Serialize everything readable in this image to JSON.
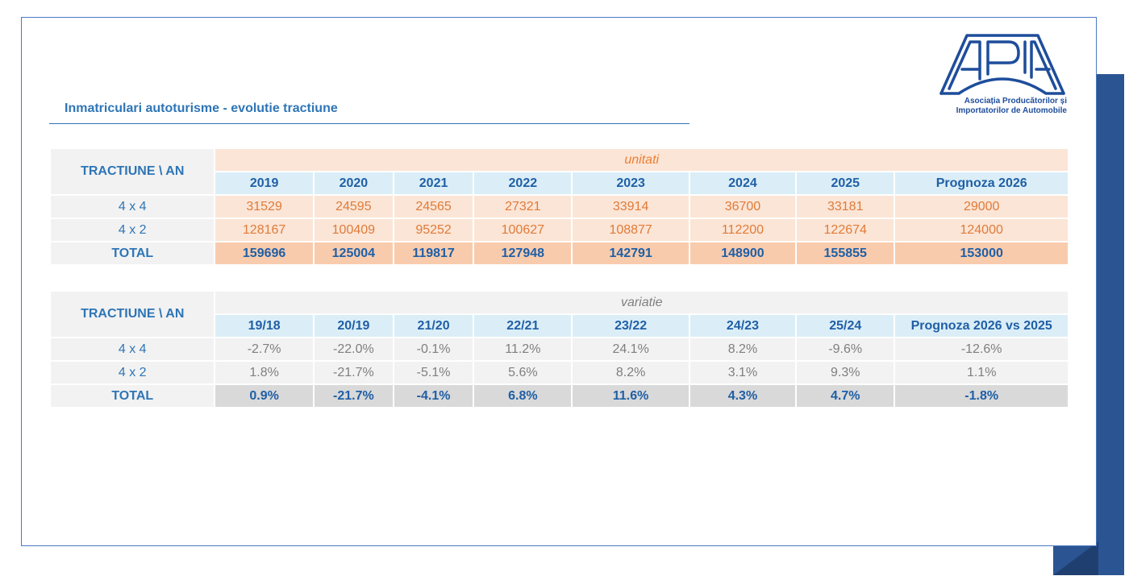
{
  "title": "Inmatriculari autoturisme - evolutie tractiune",
  "logo": {
    "letters": "APIA",
    "line1": "Asociația Producătorilor și",
    "line2": "Importatorilor de Automobile",
    "color": "#1e4d9b"
  },
  "units_table": {
    "corner": "TRACTIUNE  \\ AN",
    "group_label": "unitati",
    "columns": [
      "2019",
      "2020",
      "2021",
      "2022",
      "2023",
      "2024",
      "2025",
      "Prognoza 2026"
    ],
    "rows": [
      {
        "label": "4 x 4",
        "values": [
          "31529",
          "24595",
          "24565",
          "27321",
          "33914",
          "36700",
          "33181",
          "29000"
        ]
      },
      {
        "label": "4 x 2",
        "values": [
          "128167",
          "100409",
          "95252",
          "100627",
          "108877",
          "112200",
          "122674",
          "124000"
        ]
      },
      {
        "label": "TOTAL",
        "values": [
          "159696",
          "125004",
          "119817",
          "127948",
          "142791",
          "148900",
          "155855",
          "153000"
        ]
      }
    ]
  },
  "variation_table": {
    "corner": "TRACTIUNE  \\ AN",
    "group_label": "variatie",
    "columns": [
      "19/18",
      "20/19",
      "21/20",
      "22/21",
      "23/22",
      "24/23",
      "25/24",
      "Prognoza 2026 vs 2025"
    ],
    "rows": [
      {
        "label": "4 x 4",
        "values": [
          "-2.7%",
          "-22.0%",
          "-0.1%",
          "11.2%",
          "24.1%",
          "8.2%",
          "-9.6%",
          "-12.6%"
        ]
      },
      {
        "label": "4 x 2",
        "values": [
          "1.8%",
          "-21.7%",
          "-5.1%",
          "5.6%",
          "8.2%",
          "3.1%",
          "9.3%",
          "1.1%"
        ]
      },
      {
        "label": "TOTAL",
        "values": [
          "0.9%",
          "-21.7%",
          "-4.1%",
          "6.8%",
          "11.6%",
          "4.3%",
          "4.7%",
          "-1.8%"
        ]
      }
    ]
  }
}
